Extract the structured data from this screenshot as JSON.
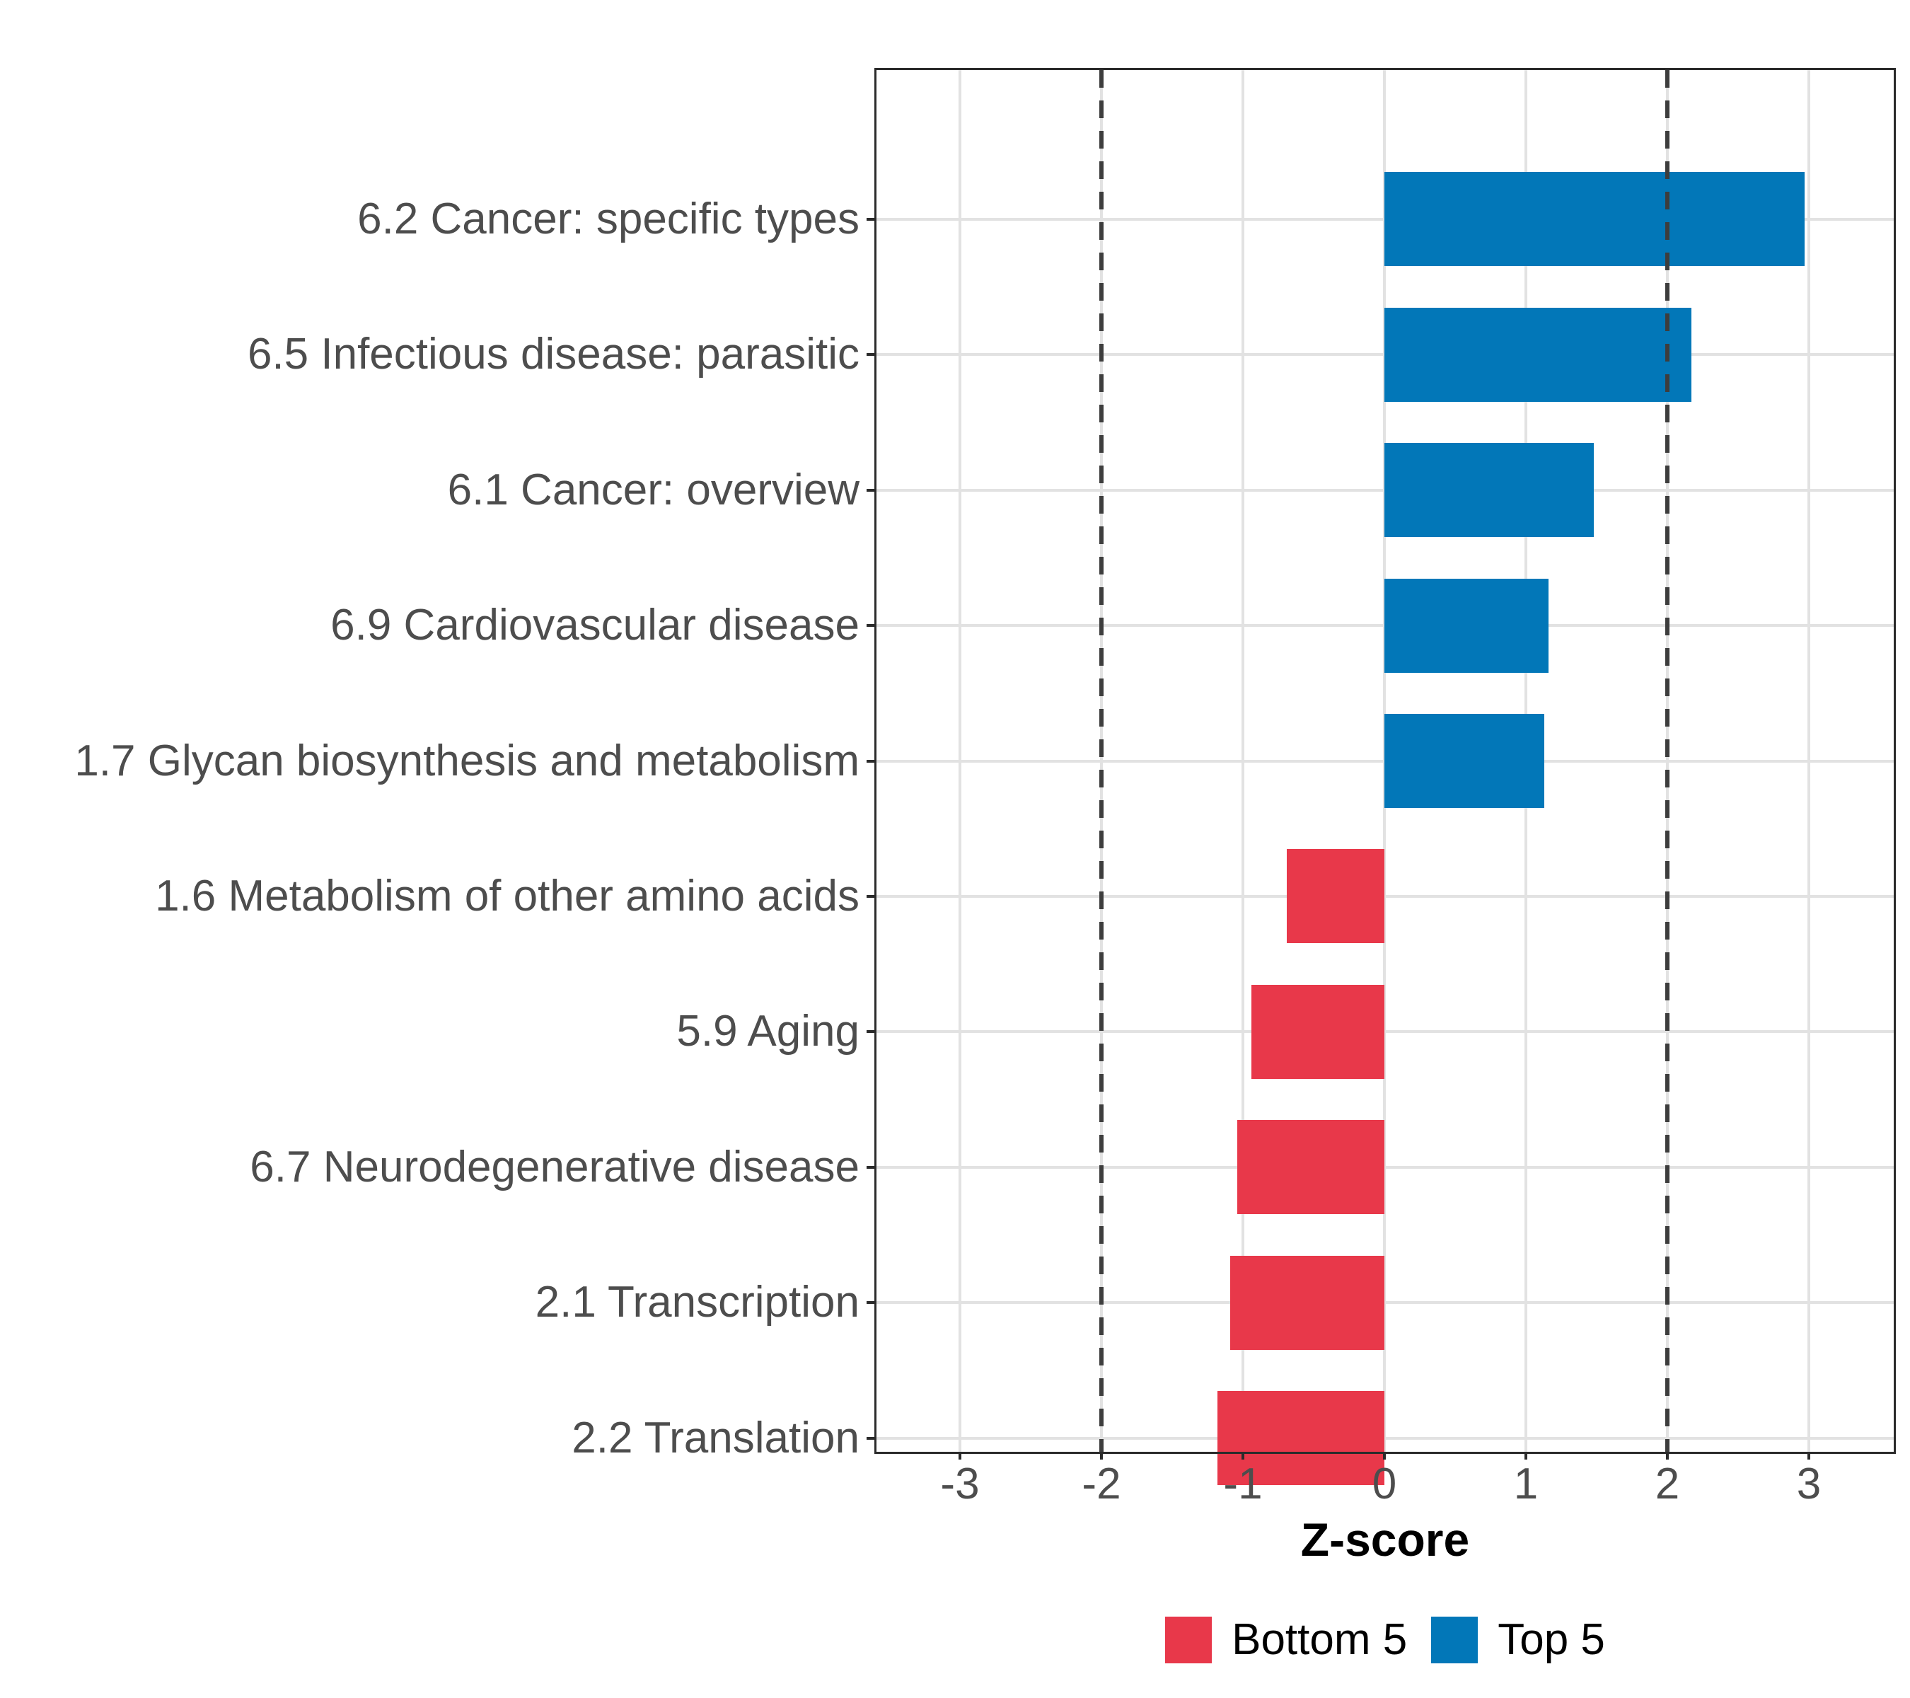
{
  "chart_data": {
    "type": "bar",
    "orientation": "horizontal",
    "title": "",
    "xlabel": "Z-score",
    "ylabel": "",
    "xlim": [
      -3.59,
      3.6
    ],
    "x_ticks": [
      -3,
      -2,
      -1,
      0,
      1,
      2,
      3
    ],
    "grid": "on",
    "reference_lines": {
      "values": [
        -2,
        2
      ],
      "style": "dashed",
      "color": "#3d3d3d"
    },
    "categories": [
      "6.2 Cancer: specific types",
      "6.5 Infectious disease: parasitic",
      "6.1 Cancer: overview",
      "6.9 Cardiovascular disease",
      "1.7 Glycan biosynthesis and metabolism",
      "1.6 Metabolism of other amino acids",
      "5.9 Aging",
      "6.7 Neurodegenerative disease",
      "2.1 Transcription",
      "2.2 Translation"
    ],
    "values": [
      2.97,
      2.17,
      1.48,
      1.16,
      1.13,
      -0.69,
      -0.94,
      -1.04,
      -1.09,
      -1.18
    ],
    "groups": [
      "Top 5",
      "Top 5",
      "Top 5",
      "Top 5",
      "Top 5",
      "Bottom 5",
      "Bottom 5",
      "Bottom 5",
      "Bottom 5",
      "Bottom 5"
    ],
    "colors": {
      "Top 5": "#0277B8",
      "Bottom 5": "#E8384A"
    },
    "legend": {
      "position": "bottom",
      "items": [
        {
          "label": "Bottom 5",
          "color": "#E8384A"
        },
        {
          "label": "Top 5",
          "color": "#0277B8"
        }
      ]
    },
    "style": {
      "panel_border_color": "#2b2b2b",
      "gridline_color": "#e2e2e2",
      "axis_text_color": "#4d4d4d",
      "axis_title_color": "#000000"
    }
  }
}
